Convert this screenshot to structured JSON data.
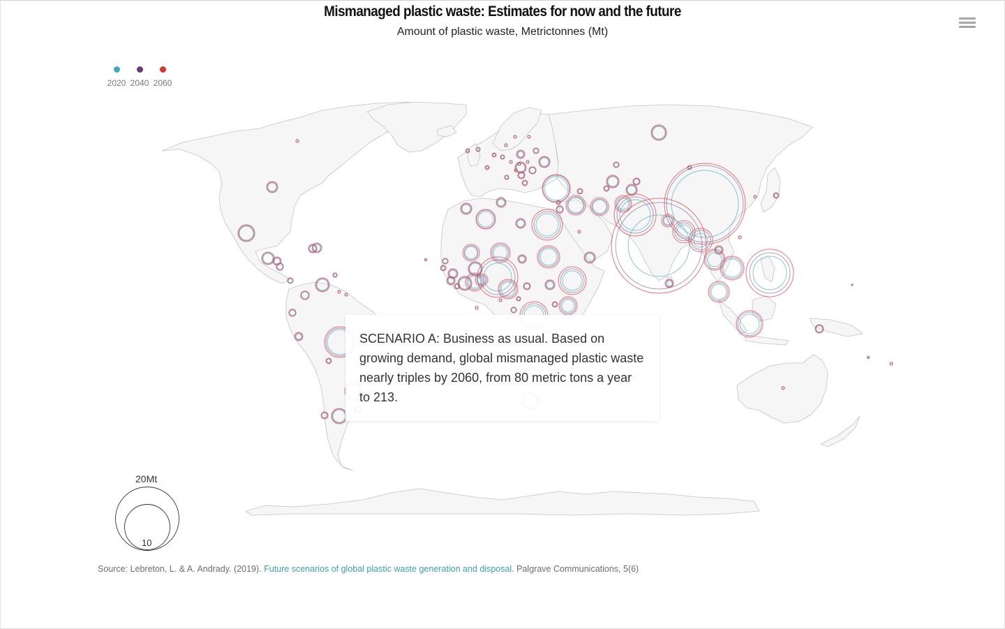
{
  "header": {
    "title": "Mismanaged plastic waste: Estimates for now and the future",
    "subtitle": "Amount of plastic waste, Metrictonnes (Mt)"
  },
  "legend": {
    "items": [
      {
        "label": "2020",
        "color": "#3fa9bd"
      },
      {
        "label": "2040",
        "color": "#6b3a7a"
      },
      {
        "label": "2060",
        "color": "#d8342f"
      }
    ]
  },
  "size_legend": {
    "max_label": "20Mt",
    "min_label": "10",
    "max_value": 20,
    "min_value": 10
  },
  "tooltip": {
    "text": "SCENARIO A: Business as usual. Based on growing demand, global mismanaged plastic waste nearly triples by 2060, from 80 metric tons a year to 213."
  },
  "source": {
    "prefix": "Source: Lebreton, L. & A. Andrady. (2019). ",
    "link_text": "Future scenarios of global plastic waste generation and disposal.",
    "suffix": " Palgrave Communications, 5(6)"
  },
  "toolbar": {
    "menu_icon": "hamburger-menu-icon"
  },
  "colors": {
    "land": "#f6f6f6",
    "border": "#c4c4c4",
    "y2020": "#5fb4c4",
    "y2040": "#7a4a86",
    "y2060": "#e0474a",
    "link": "#3e9fb0"
  }
}
